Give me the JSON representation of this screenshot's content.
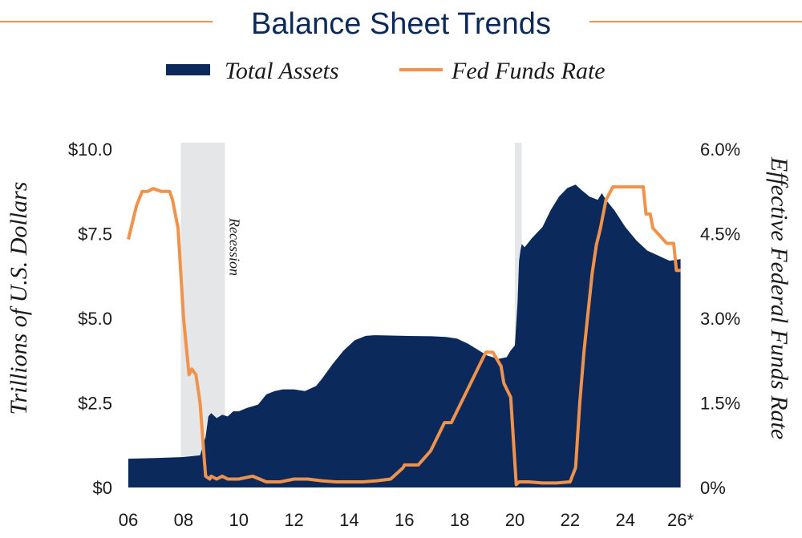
{
  "chart_data": {
    "type": "area",
    "title": "Balance Sheet Trends",
    "legend": {
      "placement": "top-center",
      "items": [
        {
          "label": "Total Assets",
          "swatch": "area"
        },
        {
          "label": "Fed Funds Rate",
          "swatch": "line"
        }
      ]
    },
    "x_tick_labels": [
      "06",
      "08",
      "10",
      "12",
      "14",
      "16",
      "18",
      "20",
      "22",
      "24",
      "26*"
    ],
    "x_tick_values": [
      2006,
      2008,
      2010,
      2012,
      2014,
      2016,
      2018,
      2020,
      2022,
      2024,
      2026
    ],
    "xlim": [
      2006,
      2026.1
    ],
    "y_left": {
      "label": "Trillions of U.S. Dollars",
      "ylim": [
        0,
        10
      ],
      "tick_values": [
        0,
        2.5,
        5,
        7.5,
        10
      ],
      "tick_labels": [
        "$0",
        "$2.5",
        "$5.0",
        "$7.5",
        "$10.0"
      ]
    },
    "y_right": {
      "label": "Effective Federal Funds Rate",
      "ylim": [
        0,
        6
      ],
      "tick_values": [
        0,
        1.5,
        3,
        4.5,
        6
      ],
      "tick_labels": [
        "0%",
        "1.5%",
        "3.0%",
        "4.5%",
        "6.0%"
      ]
    },
    "annotations": [
      {
        "text": "Recession",
        "band": [
          2007.9,
          2009.5
        ]
      },
      {
        "text": "",
        "band": [
          2020.0,
          2020.25
        ]
      }
    ],
    "series": [
      {
        "name": "Total Assets",
        "axis": "left",
        "x": [
          2006.0,
          2007.0,
          2008.0,
          2008.6,
          2008.8,
          2008.9,
          2009.0,
          2009.2,
          2009.4,
          2009.6,
          2009.8,
          2010.0,
          2010.3,
          2010.7,
          2011.0,
          2011.3,
          2011.6,
          2012.0,
          2012.4,
          2012.8,
          2013.0,
          2013.4,
          2013.8,
          2014.2,
          2014.6,
          2014.9,
          2015.0,
          2016.0,
          2017.0,
          2017.5,
          2017.9,
          2018.3,
          2018.7,
          2019.0,
          2019.4,
          2019.7,
          2019.85,
          2020.0,
          2020.1,
          2020.15,
          2020.2,
          2020.25,
          2020.35,
          2020.45,
          2020.6,
          2021.0,
          2021.3,
          2021.6,
          2021.9,
          2022.2,
          2022.4,
          2022.7,
          2023.0,
          2023.15,
          2023.3,
          2023.6,
          2024.0,
          2024.4,
          2024.8,
          2025.2,
          2025.6,
          2026.0
        ],
        "values": [
          0.85,
          0.87,
          0.9,
          0.95,
          1.5,
          2.1,
          2.2,
          2.05,
          2.15,
          2.1,
          2.25,
          2.25,
          2.35,
          2.45,
          2.75,
          2.85,
          2.9,
          2.9,
          2.85,
          3.0,
          3.2,
          3.65,
          4.05,
          4.35,
          4.48,
          4.5,
          4.5,
          4.48,
          4.47,
          4.45,
          4.4,
          4.25,
          4.05,
          3.9,
          3.8,
          3.85,
          4.05,
          4.2,
          5.5,
          6.7,
          7.0,
          7.2,
          7.1,
          7.2,
          7.35,
          7.7,
          8.2,
          8.6,
          8.85,
          8.95,
          8.8,
          8.6,
          8.5,
          8.7,
          8.5,
          8.2,
          7.7,
          7.3,
          7.0,
          6.85,
          6.7,
          6.75
        ]
      },
      {
        "name": "Fed Funds Rate",
        "axis": "right",
        "x": [
          2006.0,
          2006.1,
          2006.3,
          2006.5,
          2006.7,
          2006.9,
          2007.2,
          2007.5,
          2007.6,
          2007.8,
          2008.0,
          2008.1,
          2008.2,
          2008.3,
          2008.45,
          2008.6,
          2008.75,
          2008.8,
          2008.95,
          2009.0,
          2009.2,
          2009.4,
          2009.6,
          2010.0,
          2010.5,
          2011.0,
          2011.5,
          2012.0,
          2012.5,
          2013.0,
          2013.5,
          2014.0,
          2014.5,
          2015.0,
          2015.5,
          2015.95,
          2016.0,
          2016.5,
          2016.95,
          2017.2,
          2017.45,
          2017.7,
          2017.95,
          2018.2,
          2018.45,
          2018.7,
          2018.95,
          2019.2,
          2019.5,
          2019.6,
          2019.85,
          2020.05,
          2020.15,
          2020.5,
          2021.0,
          2021.5,
          2022.0,
          2022.2,
          2022.35,
          2022.5,
          2022.65,
          2022.8,
          2022.95,
          2023.1,
          2023.3,
          2023.55,
          2024.0,
          2024.65,
          2024.75,
          2024.9,
          2025.0,
          2025.5,
          2025.75,
          2025.85,
          2026.0
        ],
        "values": [
          4.4,
          4.6,
          5.0,
          5.25,
          5.25,
          5.3,
          5.25,
          5.25,
          5.1,
          4.6,
          3.0,
          2.5,
          2.0,
          2.1,
          2.0,
          1.5,
          0.5,
          0.2,
          0.15,
          0.2,
          0.15,
          0.2,
          0.15,
          0.15,
          0.2,
          0.1,
          0.1,
          0.15,
          0.15,
          0.12,
          0.1,
          0.1,
          0.1,
          0.12,
          0.15,
          0.35,
          0.4,
          0.4,
          0.65,
          0.9,
          1.15,
          1.15,
          1.4,
          1.65,
          1.9,
          2.15,
          2.4,
          2.4,
          2.15,
          1.85,
          1.6,
          0.05,
          0.1,
          0.1,
          0.08,
          0.08,
          0.1,
          0.35,
          1.5,
          2.4,
          3.1,
          3.8,
          4.3,
          4.6,
          5.1,
          5.33,
          5.33,
          5.33,
          4.85,
          4.85,
          4.6,
          4.33,
          4.33,
          3.85,
          3.85
        ]
      }
    ]
  },
  "colors": {
    "title": "#0b2a5b",
    "assets_fill": "#0b2a5b",
    "rate_line": "#f0924a",
    "title_rule": "#f0924a",
    "recession_band": "#e4e6e8",
    "text": "#1a1a1a"
  }
}
